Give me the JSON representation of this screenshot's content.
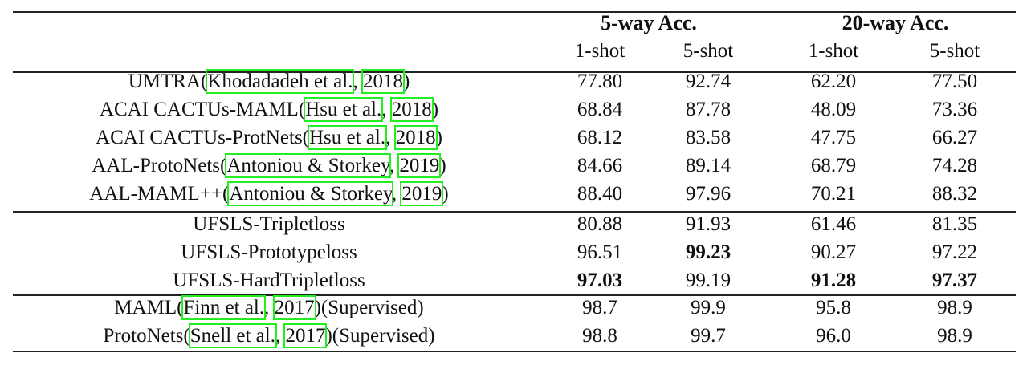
{
  "table": {
    "groups": [
      "5-way Acc.",
      "20-way Acc."
    ],
    "subheaders": [
      "1-shot",
      "5-shot",
      "1-shot",
      "5-shot"
    ],
    "rows": [
      {
        "pre": "UMTRA(",
        "c1": "Khodadadeh et al.",
        "sep": ", ",
        "c2": "2018",
        "post": ")",
        "values": [
          "77.80",
          "92.74",
          "62.20",
          "77.50"
        ],
        "bold": [
          false,
          false,
          false,
          false
        ]
      },
      {
        "pre": "ACAI CACTUs-MAML(",
        "c1": "Hsu et al.",
        "sep": ", ",
        "c2": "2018",
        "post": ")",
        "values": [
          "68.84",
          "87.78",
          "48.09",
          "73.36"
        ],
        "bold": [
          false,
          false,
          false,
          false
        ]
      },
      {
        "pre": "ACAI CACTUs-ProtNets(",
        "c1": "Hsu et al.",
        "sep": ", ",
        "c2": "2018",
        "post": ")",
        "values": [
          "68.12",
          "83.58",
          "47.75",
          "66.27"
        ],
        "bold": [
          false,
          false,
          false,
          false
        ]
      },
      {
        "pre": "AAL-ProtoNets(",
        "c1": "Antoniou & Storkey",
        "sep": ", ",
        "c2": "2019",
        "post": ")",
        "values": [
          "84.66",
          "89.14",
          "68.79",
          "74.28"
        ],
        "bold": [
          false,
          false,
          false,
          false
        ]
      },
      {
        "pre": "AAL-MAML++(",
        "c1": "Antoniou & Storkey",
        "sep": ", ",
        "c2": "2019",
        "post": ")",
        "values": [
          "88.40",
          "97.96",
          "70.21",
          "88.32"
        ],
        "bold": [
          false,
          false,
          false,
          false
        ]
      },
      {
        "pre": "UFSLS-Tripletloss",
        "c1": "",
        "sep": "",
        "c2": "",
        "post": "",
        "values": [
          "80.88",
          "91.93",
          "61.46",
          "81.35"
        ],
        "bold": [
          false,
          false,
          false,
          false
        ]
      },
      {
        "pre": "UFSLS-Prototypeloss",
        "c1": "",
        "sep": "",
        "c2": "",
        "post": "",
        "values": [
          "96.51",
          "99.23",
          "90.27",
          "97.22"
        ],
        "bold": [
          false,
          true,
          false,
          false
        ]
      },
      {
        "pre": "UFSLS-HardTripletloss",
        "c1": "",
        "sep": "",
        "c2": "",
        "post": "",
        "values": [
          "97.03",
          "99.19",
          "91.28",
          "97.37"
        ],
        "bold": [
          true,
          false,
          true,
          true
        ]
      },
      {
        "pre": "MAML(",
        "c1": "Finn et al.",
        "sep": ", ",
        "c2": "2017",
        "post": ")(Supervised)",
        "values": [
          "98.7",
          "99.9",
          "95.8",
          "98.9"
        ],
        "bold": [
          false,
          false,
          false,
          false
        ]
      },
      {
        "pre": "ProtoNets(",
        "c1": "Snell et al.",
        "sep": ", ",
        "c2": "2017",
        "post": ")(Supervised)",
        "values": [
          "98.8",
          "99.7",
          "96.0",
          "98.9"
        ],
        "bold": [
          false,
          false,
          false,
          false
        ]
      }
    ]
  }
}
